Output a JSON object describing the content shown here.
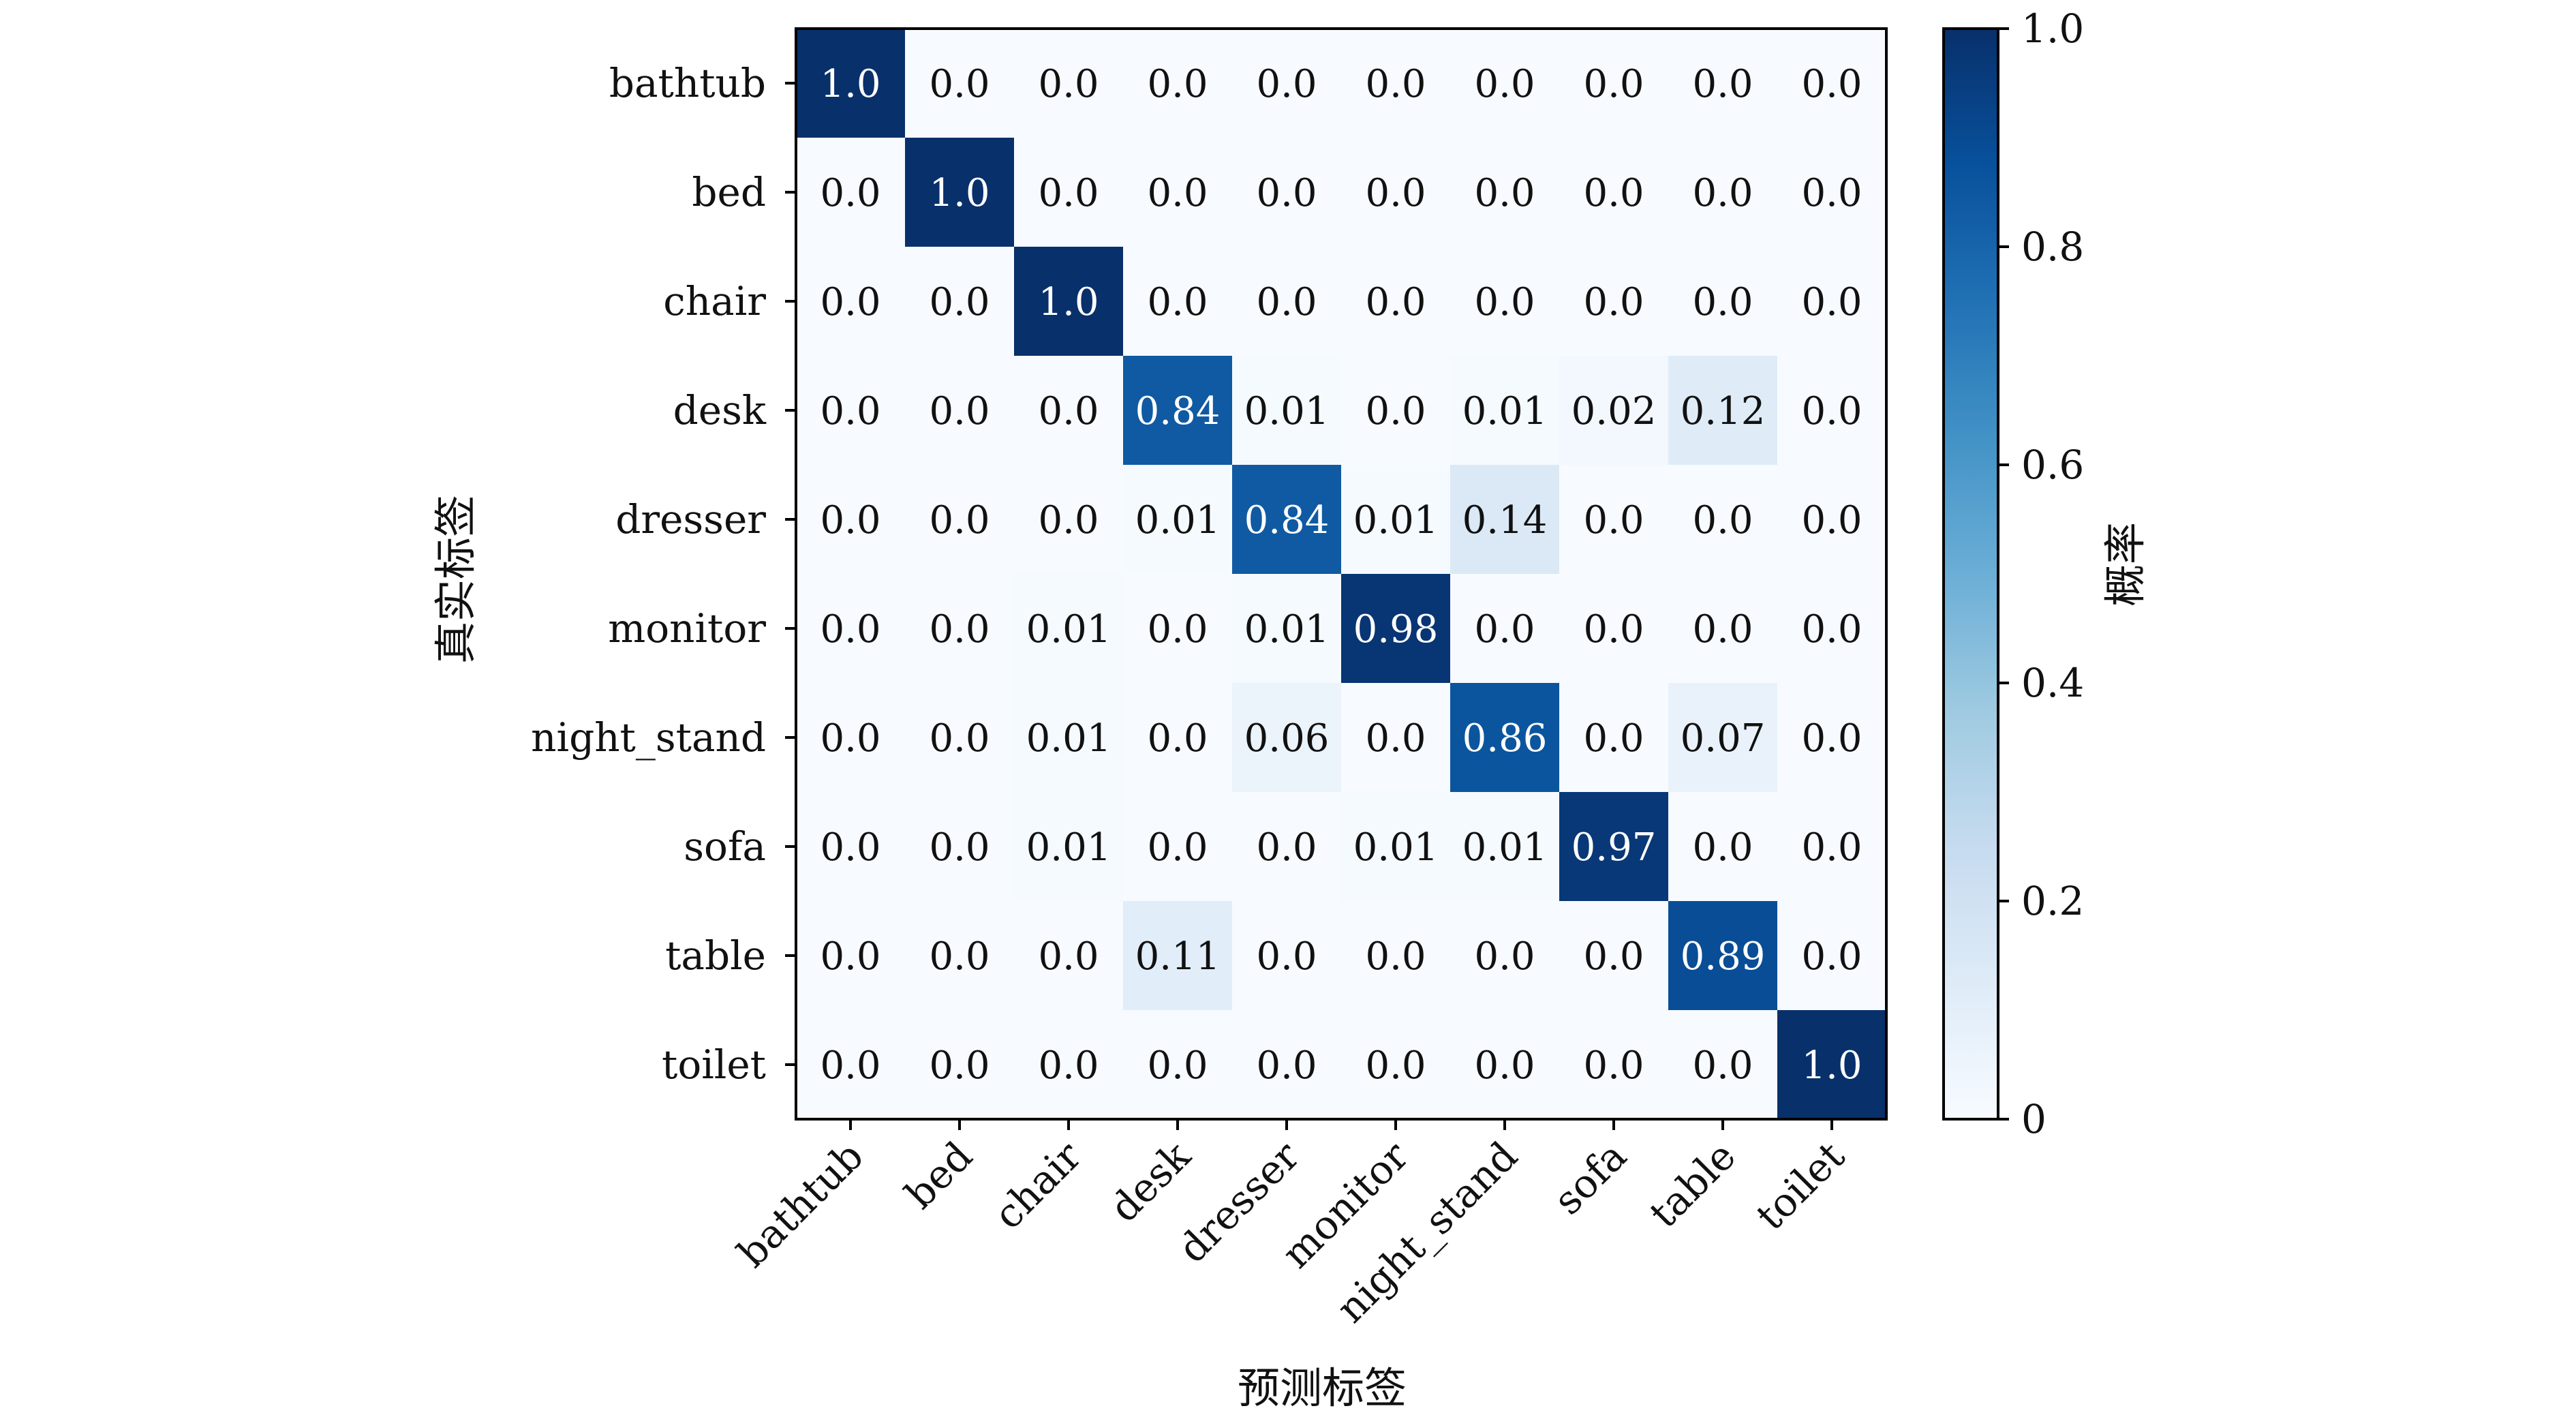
{
  "chart_data": {
    "type": "heatmap",
    "title": "",
    "xlabel": "预测标签",
    "ylabel": "真实标签",
    "row_labels": [
      "bathtub",
      "bed",
      "chair",
      "desk",
      "dresser",
      "monitor",
      "night_stand",
      "sofa",
      "table",
      "toilet"
    ],
    "col_labels": [
      "bathtub",
      "bed",
      "chair",
      "desk",
      "dresser",
      "monitor",
      "night_stand",
      "sofa",
      "table",
      "toilet"
    ],
    "values": [
      [
        1.0,
        0.0,
        0.0,
        0.0,
        0.0,
        0.0,
        0.0,
        0.0,
        0.0,
        0.0
      ],
      [
        0.0,
        1.0,
        0.0,
        0.0,
        0.0,
        0.0,
        0.0,
        0.0,
        0.0,
        0.0
      ],
      [
        0.0,
        0.0,
        1.0,
        0.0,
        0.0,
        0.0,
        0.0,
        0.0,
        0.0,
        0.0
      ],
      [
        0.0,
        0.0,
        0.0,
        0.84,
        0.01,
        0.0,
        0.01,
        0.02,
        0.12,
        0.0
      ],
      [
        0.0,
        0.0,
        0.0,
        0.01,
        0.84,
        0.01,
        0.14,
        0.0,
        0.0,
        0.0
      ],
      [
        0.0,
        0.0,
        0.01,
        0.0,
        0.01,
        0.98,
        0.0,
        0.0,
        0.0,
        0.0
      ],
      [
        0.0,
        0.0,
        0.01,
        0.0,
        0.06,
        0.0,
        0.86,
        0.0,
        0.07,
        0.0
      ],
      [
        0.0,
        0.0,
        0.01,
        0.0,
        0.0,
        0.01,
        0.01,
        0.97,
        0.0,
        0.0
      ],
      [
        0.0,
        0.0,
        0.0,
        0.11,
        0.0,
        0.0,
        0.0,
        0.0,
        0.89,
        0.0
      ],
      [
        0.0,
        0.0,
        0.0,
        0.0,
        0.0,
        0.0,
        0.0,
        0.0,
        0.0,
        1.0
      ]
    ],
    "value_labels": [
      [
        "1.0",
        "0.0",
        "0.0",
        "0.0",
        "0.0",
        "0.0",
        "0.0",
        "0.0",
        "0.0",
        "0.0"
      ],
      [
        "0.0",
        "1.0",
        "0.0",
        "0.0",
        "0.0",
        "0.0",
        "0.0",
        "0.0",
        "0.0",
        "0.0"
      ],
      [
        "0.0",
        "0.0",
        "1.0",
        "0.0",
        "0.0",
        "0.0",
        "0.0",
        "0.0",
        "0.0",
        "0.0"
      ],
      [
        "0.0",
        "0.0",
        "0.0",
        "0.84",
        "0.01",
        "0.0",
        "0.01",
        "0.02",
        "0.12",
        "0.0"
      ],
      [
        "0.0",
        "0.0",
        "0.0",
        "0.01",
        "0.84",
        "0.01",
        "0.14",
        "0.0",
        "0.0",
        "0.0"
      ],
      [
        "0.0",
        "0.0",
        "0.01",
        "0.0",
        "0.01",
        "0.98",
        "0.0",
        "0.0",
        "0.0",
        "0.0"
      ],
      [
        "0.0",
        "0.0",
        "0.01",
        "0.0",
        "0.06",
        "0.0",
        "0.86",
        "0.0",
        "0.07",
        "0.0"
      ],
      [
        "0.0",
        "0.0",
        "0.01",
        "0.0",
        "0.0",
        "0.01",
        "0.01",
        "0.97",
        "0.0",
        "0.0"
      ],
      [
        "0.0",
        "0.0",
        "0.0",
        "0.11",
        "0.0",
        "0.0",
        "0.0",
        "0.0",
        "0.89",
        "0.0"
      ],
      [
        "0.0",
        "0.0",
        "0.0",
        "0.0",
        "0.0",
        "0.0",
        "0.0",
        "0.0",
        "0.0",
        "1.0"
      ]
    ],
    "colorbar": {
      "label": "概率",
      "range": [
        0,
        1
      ],
      "ticks": [
        {
          "value": 0,
          "label": "0"
        },
        {
          "value": 0.2,
          "label": "0.2"
        },
        {
          "value": 0.4,
          "label": "0.4"
        },
        {
          "value": 0.6,
          "label": "0.6"
        },
        {
          "value": 0.8,
          "label": "0.8"
        },
        {
          "value": 1.0,
          "label": "1.0"
        }
      ]
    },
    "colormap": "Blues",
    "colors": {
      "low": "#f7fbff",
      "high": "#08306b",
      "text_dark": "#111111",
      "text_light": "#ffffff"
    },
    "grid": false,
    "legend": "none"
  }
}
